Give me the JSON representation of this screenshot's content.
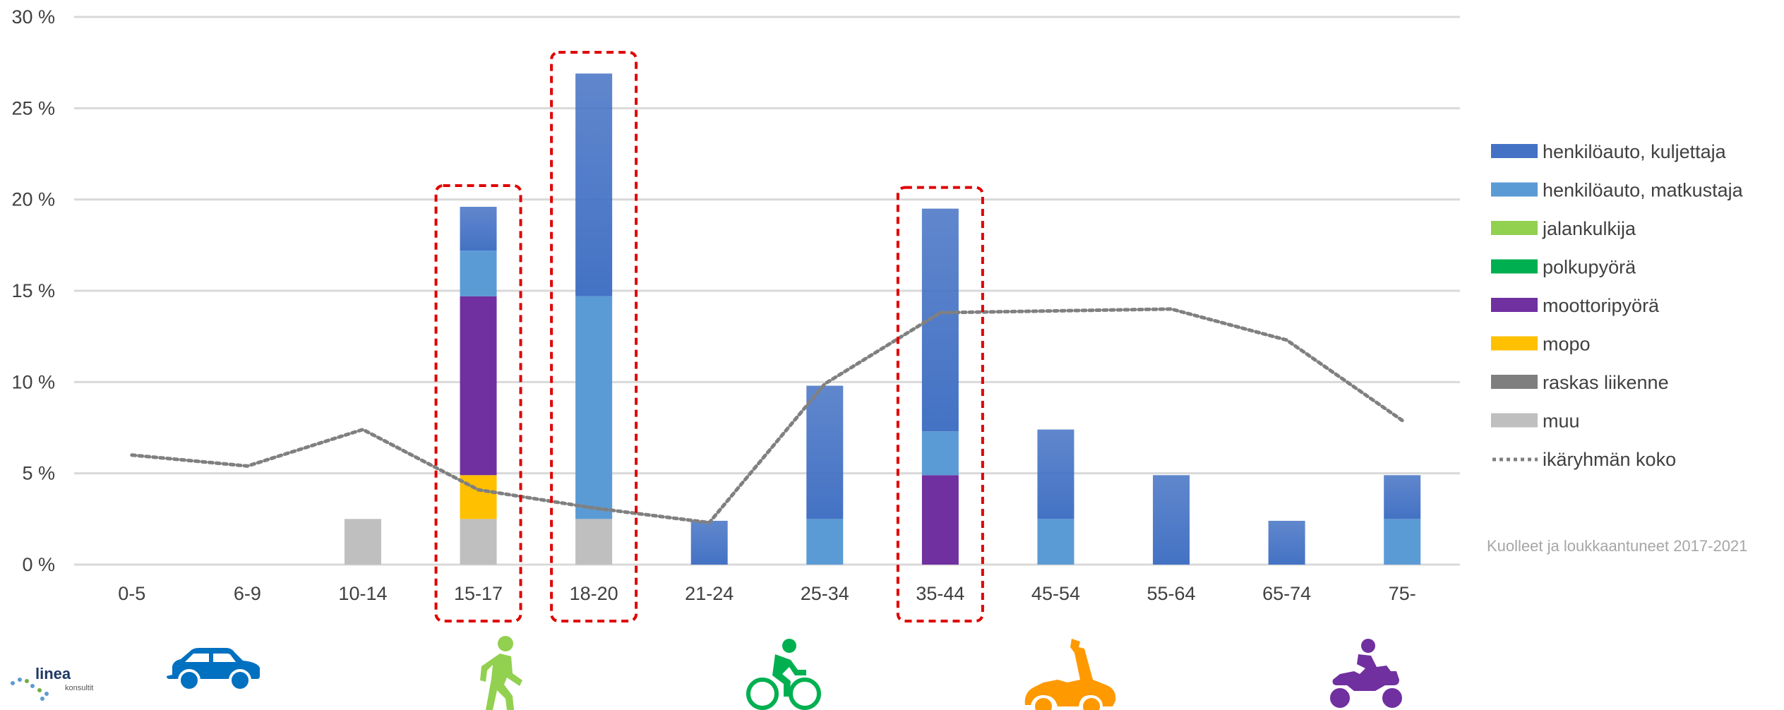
{
  "chart_data": {
    "type": "bar",
    "stacked": true,
    "categories": [
      "0-5",
      "6-9",
      "10-14",
      "15-17",
      "18-20",
      "21-24",
      "25-34",
      "35-44",
      "45-54",
      "55-64",
      "65-74",
      "75-"
    ],
    "ylim": [
      0,
      30
    ],
    "yticks": [
      "0 %",
      "5 %",
      "10 %",
      "15 %",
      "20 %",
      "25 %",
      "30 %"
    ],
    "ytick_values": [
      0,
      5,
      10,
      15,
      20,
      25,
      30
    ],
    "grid": true,
    "legend_position": "right",
    "series": [
      {
        "name": "henkilöauto, kuljettaja",
        "color": "#4472c4",
        "values": [
          0,
          0,
          0,
          2.4,
          12.2,
          2.4,
          7.3,
          12.2,
          4.9,
          4.9,
          2.4,
          2.4
        ]
      },
      {
        "name": "henkilöauto, matkustaja",
        "color": "#5b9bd5",
        "values": [
          0,
          0,
          0,
          2.5,
          12.2,
          0,
          2.5,
          2.4,
          2.5,
          0,
          0,
          2.5
        ]
      },
      {
        "name": "jalankulkija",
        "color": "#92d050",
        "values": [
          0,
          0,
          0,
          0,
          0,
          0,
          0,
          0,
          0,
          0,
          0,
          0
        ]
      },
      {
        "name": "polkupyörä",
        "color": "#00b050",
        "values": [
          0,
          0,
          0,
          0,
          0,
          0,
          0,
          0,
          0,
          0,
          0,
          0
        ]
      },
      {
        "name": "moottoripyörä",
        "color": "#7030a0",
        "values": [
          0,
          0,
          0,
          9.8,
          0,
          0,
          0,
          4.9,
          0,
          0,
          0,
          0
        ]
      },
      {
        "name": "mopo",
        "color": "#ffc000",
        "values": [
          0,
          0,
          0,
          2.4,
          0,
          0,
          0,
          0,
          0,
          0,
          0,
          0
        ]
      },
      {
        "name": "raskas liikenne",
        "color": "#7f7f7f",
        "values": [
          0,
          0,
          0,
          0,
          0,
          0,
          0,
          0,
          0,
          0,
          0,
          0
        ]
      },
      {
        "name": "muu",
        "color": "#bfbfbf",
        "values": [
          0,
          0,
          2.5,
          2.5,
          2.5,
          0,
          0,
          0,
          0,
          0,
          0,
          0
        ]
      }
    ],
    "line_series": {
      "name": "ikäryhmän koko",
      "color": "#808080",
      "values": [
        6.0,
        5.4,
        7.4,
        4.1,
        3.1,
        2.3,
        9.9,
        13.8,
        13.9,
        14.0,
        12.3,
        7.9
      ]
    },
    "highlighted_categories": [
      "15-17",
      "18-20",
      "35-44"
    ],
    "highlight_color": "#e00000",
    "note": "Kuolleet ja loukkaantuneet 2017-2021"
  },
  "logo": {
    "text": "linea",
    "subtext": "konsultit"
  },
  "icons": [
    {
      "name": "car-icon",
      "color": "#0070c0",
      "category": "0-5"
    },
    {
      "name": "pedestrian-icon",
      "color": "#92d050",
      "category": "15-17"
    },
    {
      "name": "bicycle-icon",
      "color": "#00b050",
      "category": "21-24"
    },
    {
      "name": "moped-icon",
      "color": "#ff9900",
      "category": "45-54"
    },
    {
      "name": "motorcycle-icon",
      "color": "#7030a0",
      "category": "75-"
    }
  ]
}
